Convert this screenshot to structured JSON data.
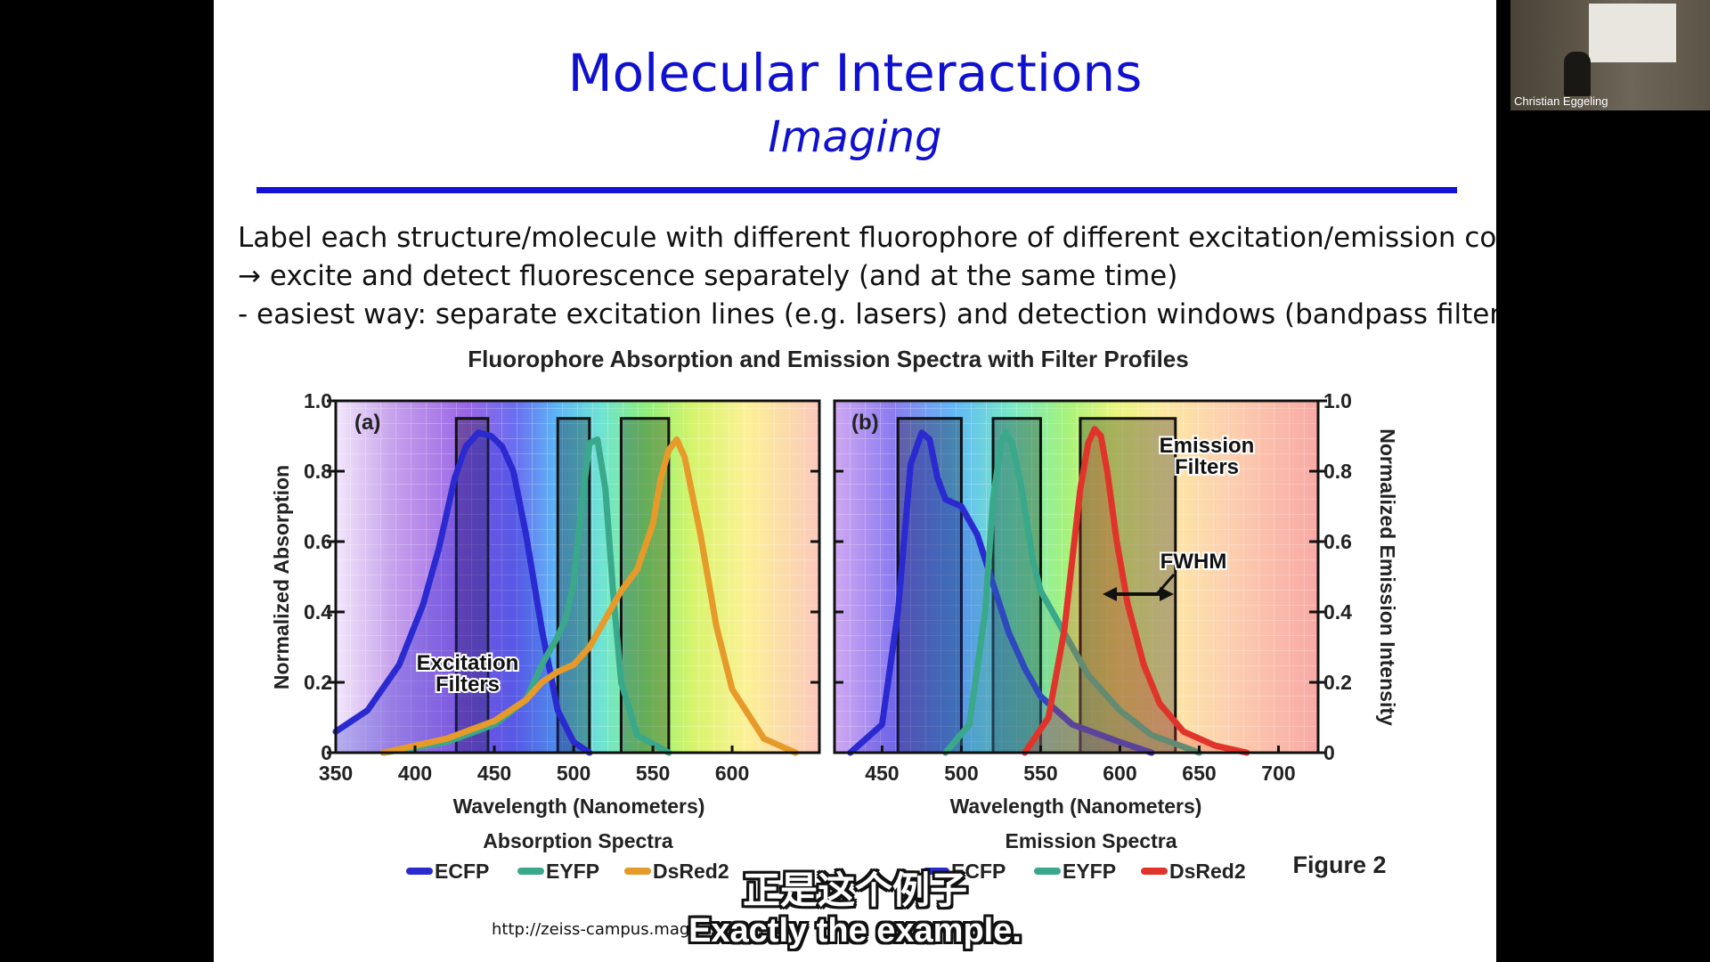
{
  "slide": {
    "title": "Molecular Interactions",
    "subtitle": "Imaging",
    "bullets": [
      "Label each structure/molecule with different fluorophore of different excitation/emission color",
      "→ excite and detect fluorescence separately (and at the same time)",
      "- easiest way: separate excitation lines (e.g. lasers) and detection windows (bandpass filters)"
    ],
    "url": "http://zeiss-campus.magn...ction.html"
  },
  "subtitles": {
    "chinese": "正是这个例子",
    "english": "Exactly the example."
  },
  "webcam": {
    "name": "Christian Eggeling"
  },
  "figure": {
    "caption": "Figure 2",
    "colors": {
      "ECFP": "#2a2ad0",
      "EYFP": "#3aa88a",
      "DsRed2": "#e0342a",
      "DsRed2_absorption": "#e69a2a"
    }
  },
  "chart_data": [
    {
      "type": "line",
      "panel_label": "(a)",
      "title": "Fluorophore Absorption and Emission Spectra with Filter Profiles",
      "subtitle": "Absorption Spectra",
      "xlabel": "Wavelength (Nanometers)",
      "ylabel": "Normalized Absorption",
      "xlim": [
        350,
        655
      ],
      "ylim": [
        0,
        1.0
      ],
      "x_ticks": [
        350,
        400,
        450,
        500,
        550,
        600
      ],
      "y_ticks": [
        "0",
        "0.2",
        "0.4",
        "0.6",
        "0.8",
        "1.0"
      ],
      "annotation": "Excitation Filters",
      "filters": [
        [
          426,
          446
        ],
        [
          490,
          510
        ],
        [
          530,
          560
        ]
      ],
      "series": [
        {
          "name": "ECFP",
          "x": [
            350,
            370,
            390,
            405,
            415,
            425,
            432,
            440,
            448,
            455,
            462,
            470,
            480,
            490,
            500,
            510
          ],
          "y": [
            0.06,
            0.12,
            0.25,
            0.42,
            0.58,
            0.78,
            0.87,
            0.91,
            0.9,
            0.87,
            0.8,
            0.62,
            0.35,
            0.12,
            0.03,
            0.0
          ]
        },
        {
          "name": "EYFP",
          "x": [
            380,
            420,
            450,
            470,
            480,
            490,
            495,
            500,
            505,
            510,
            515,
            520,
            525,
            530,
            540,
            560
          ],
          "y": [
            0.0,
            0.03,
            0.08,
            0.15,
            0.25,
            0.33,
            0.38,
            0.48,
            0.7,
            0.88,
            0.89,
            0.75,
            0.45,
            0.2,
            0.05,
            0.0
          ]
        },
        {
          "name": "DsRed2",
          "x": [
            380,
            420,
            450,
            470,
            480,
            490,
            500,
            510,
            520,
            530,
            540,
            550,
            555,
            560,
            565,
            570,
            580,
            590,
            600,
            620,
            640
          ],
          "y": [
            0.0,
            0.04,
            0.09,
            0.15,
            0.2,
            0.23,
            0.25,
            0.3,
            0.38,
            0.46,
            0.52,
            0.65,
            0.78,
            0.86,
            0.89,
            0.84,
            0.62,
            0.36,
            0.18,
            0.04,
            0.0
          ]
        }
      ],
      "legend": [
        "ECFP",
        "EYFP",
        "DsRed2"
      ]
    },
    {
      "type": "line",
      "panel_label": "(b)",
      "subtitle": "Emission Spectra",
      "xlabel": "Wavelength (Nanometers)",
      "ylabel": "Normalized Emission Intensity",
      "xlim": [
        420,
        725
      ],
      "ylim": [
        0,
        1.0
      ],
      "x_ticks": [
        450,
        500,
        550,
        600,
        650,
        700
      ],
      "y_ticks": [
        "0",
        "0.2",
        "0.4",
        "0.6",
        "0.8",
        "1.0"
      ],
      "annotations": [
        "Emission Filters",
        "FWHM"
      ],
      "filters": [
        [
          460,
          500
        ],
        [
          520,
          550
        ],
        [
          575,
          635
        ]
      ],
      "series": [
        {
          "name": "ECFP",
          "x": [
            430,
            450,
            460,
            468,
            475,
            480,
            485,
            490,
            500,
            510,
            520,
            530,
            540,
            550,
            570,
            600,
            620
          ],
          "y": [
            0.0,
            0.08,
            0.4,
            0.82,
            0.91,
            0.89,
            0.78,
            0.72,
            0.7,
            0.62,
            0.48,
            0.34,
            0.24,
            0.16,
            0.08,
            0.03,
            0.0
          ]
        },
        {
          "name": "EYFP",
          "x": [
            490,
            505,
            515,
            520,
            525,
            528,
            532,
            538,
            545,
            550,
            560,
            570,
            580,
            600,
            620,
            650
          ],
          "y": [
            0.0,
            0.08,
            0.4,
            0.72,
            0.88,
            0.91,
            0.88,
            0.75,
            0.55,
            0.46,
            0.38,
            0.3,
            0.22,
            0.12,
            0.05,
            0.0
          ]
        },
        {
          "name": "DsRed2",
          "x": [
            540,
            555,
            565,
            570,
            575,
            580,
            584,
            588,
            592,
            598,
            605,
            615,
            625,
            640,
            660,
            680
          ],
          "y": [
            0.0,
            0.1,
            0.35,
            0.55,
            0.75,
            0.88,
            0.92,
            0.9,
            0.8,
            0.6,
            0.42,
            0.25,
            0.14,
            0.06,
            0.02,
            0.0
          ]
        }
      ],
      "legend": [
        "ECFP",
        "EYFP",
        "DsRed2"
      ]
    }
  ]
}
